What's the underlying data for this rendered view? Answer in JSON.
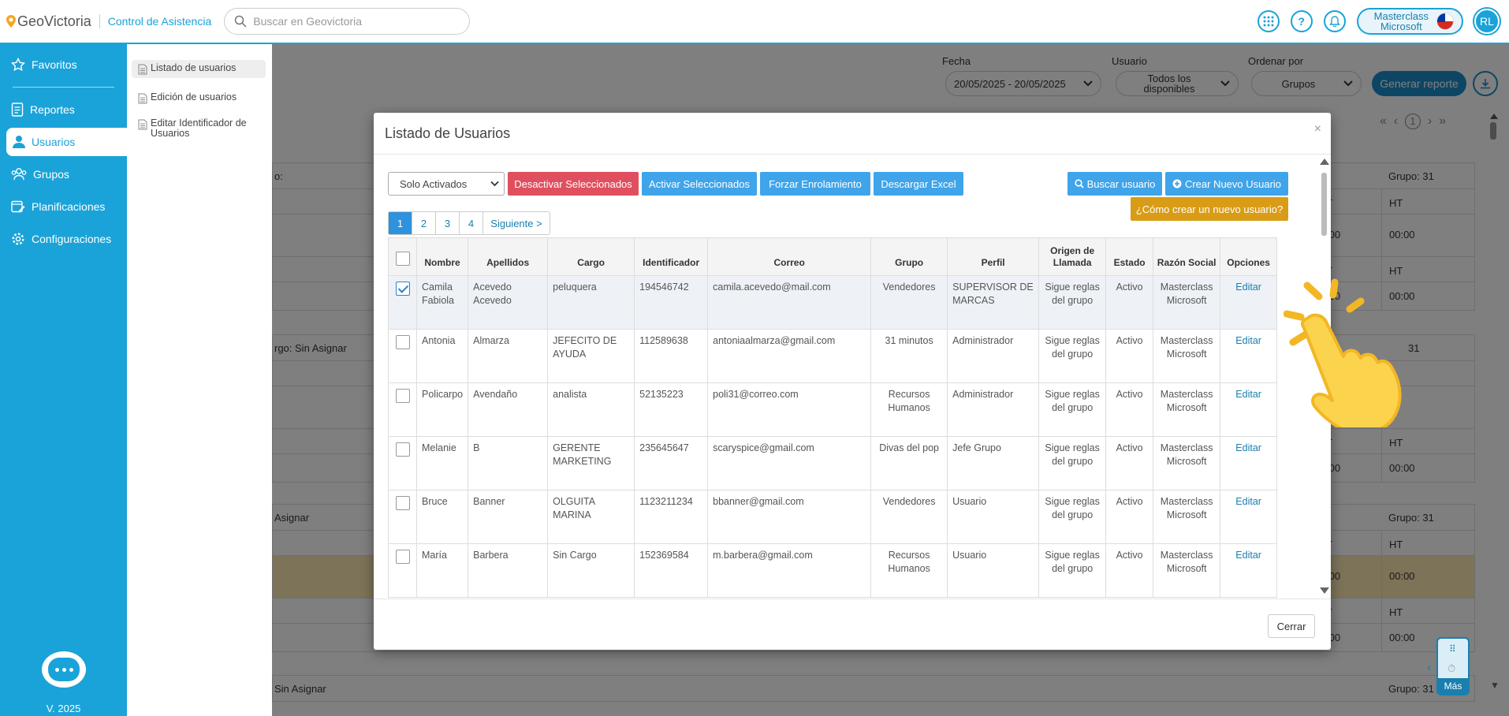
{
  "topbar": {
    "logo": "GeoVictoria",
    "module": "Control de Asistencia",
    "search_placeholder": "Buscar en Geovictoria",
    "company_line1": "Masterclass",
    "company_line2": "Microsoft",
    "avatar": "RL"
  },
  "sidebar": {
    "items": [
      {
        "label": "Favoritos"
      },
      {
        "label": "Reportes"
      },
      {
        "label": "Usuarios"
      },
      {
        "label": "Grupos"
      },
      {
        "label": "Planificaciones"
      },
      {
        "label": "Configuraciones"
      }
    ],
    "version": "V. 2025"
  },
  "submenu": {
    "items": [
      {
        "label": "Listado de usuarios"
      },
      {
        "label": "Edición de usuarios"
      },
      {
        "label": "Editar Identificador de Usuarios"
      }
    ]
  },
  "background": {
    "fecha_label": "Fecha",
    "fecha_value": "20/05/2025 - 20/05/2025",
    "usuario_label": "Usuario",
    "usuario_value": "Todos los disponibles",
    "ordenar_label": "Ordenar por",
    "ordenar_value": "Grupos",
    "generar_btn": "Generar reporte",
    "page_num": "1",
    "cards": [
      {
        "left_text": "o:",
        "right_text": "Grupo: 31"
      },
      {
        "left_text": "rgo: Sin Asignar",
        "right_text": "31"
      },
      {
        "left_text": "Asignar",
        "right_text": "Grupo: 31"
      },
      {
        "left_text": "Sin Asignar",
        "right_text": "Grupo: 31"
      }
    ],
    "col_ht": "HT",
    "col_t": "T",
    "time": "00:00",
    "time_short": ":00",
    "mas": "Más"
  },
  "modal": {
    "title": "Listado de Usuarios",
    "filter_select": "Solo Activados",
    "btn_desactivar": "Desactivar Seleccionados",
    "btn_activar": "Activar Seleccionados",
    "btn_forzar": "Forzar Enrolamiento",
    "btn_excel": "Descargar Excel",
    "btn_buscar": "Buscar usuario",
    "btn_crear": "Crear Nuevo Usuario",
    "btn_como": "¿Cómo crear un nuevo usuario?",
    "pager": [
      "1",
      "2",
      "3",
      "4",
      "Siguiente >"
    ],
    "columns": [
      "Nombre",
      "Apellidos",
      "Cargo",
      "Identificador",
      "Correo",
      "Grupo",
      "Perfil",
      "Origen de Llamada",
      "Estado",
      "Razón Social",
      "Opciones"
    ],
    "rows": [
      {
        "nombre": "Camila Fabiola",
        "apellidos": "Acevedo Acevedo",
        "cargo": "peluquera",
        "id": "194546742",
        "correo": "camila.acevedo@mail.com",
        "grupo": "Vendedores",
        "perfil": "SUPERVISOR DE MARCAS",
        "origen": "Sigue reglas del grupo",
        "estado": "Activo",
        "razon": "Masterclass Microsoft",
        "opcion": "Editar"
      },
      {
        "nombre": "Antonia",
        "apellidos": "Almarza",
        "cargo": "JEFECITO DE AYUDA",
        "id": "112589638",
        "correo": "antoniaalmarza@gmail.com",
        "grupo": "31 minutos",
        "perfil": "Administrador",
        "origen": "Sigue reglas del grupo",
        "estado": "Activo",
        "razon": "Masterclass Microsoft",
        "opcion": "Editar"
      },
      {
        "nombre": "Policarpo",
        "apellidos": "Avendaño",
        "cargo": "analista",
        "id": "52135223",
        "correo": "poli31@correo.com",
        "grupo": "Recursos Humanos",
        "perfil": "Administrador",
        "origen": "Sigue reglas del grupo",
        "estado": "Activo",
        "razon": "Masterclass Microsoft",
        "opcion": "Editar"
      },
      {
        "nombre": "Melanie",
        "apellidos": "B",
        "cargo": "GERENTE MARKETING",
        "id": "235645647",
        "correo": "scaryspice@gmail.com",
        "grupo": "Divas del pop",
        "perfil": "Jefe Grupo",
        "origen": "Sigue reglas del grupo",
        "estado": "Activo",
        "razon": "Masterclass Microsoft",
        "opcion": "Editar"
      },
      {
        "nombre": "Bruce",
        "apellidos": "Banner",
        "cargo": "OLGUITA MARINA",
        "id": "1123211234",
        "correo": "bbanner@gmail.com",
        "grupo": "Vendedores",
        "perfil": "Usuario",
        "origen": "Sigue reglas del grupo",
        "estado": "Activo",
        "razon": "Masterclass Microsoft",
        "opcion": "Editar"
      },
      {
        "nombre": "María",
        "apellidos": "Barbera",
        "cargo": "Sin Cargo",
        "id": "152369584",
        "correo": "m.barbera@gmail.com",
        "grupo": "Recursos Humanos",
        "perfil": "Usuario",
        "origen": "Sigue reglas del grupo",
        "estado": "Activo",
        "razon": "Masterclass Microsoft",
        "opcion": "Editar"
      }
    ],
    "close_btn": "Cerrar",
    "colors": {
      "danger": "#e04f5f",
      "primary": "#3fa4ea",
      "warning": "#d99c17",
      "brand": "#1aa3d8"
    }
  }
}
